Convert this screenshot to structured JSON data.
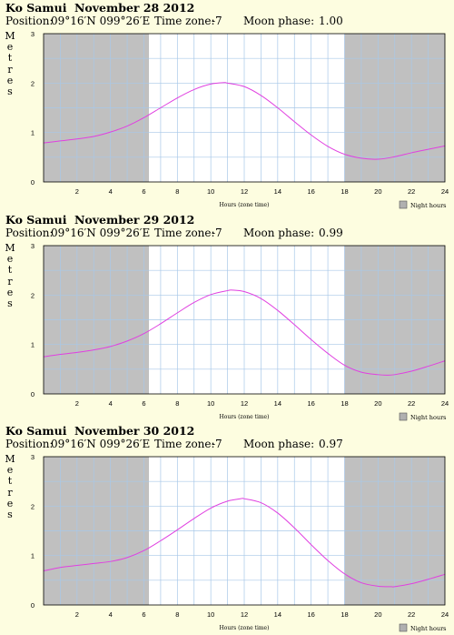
{
  "charts": [
    {
      "place": "Ko Samui",
      "date": "November 28 2012",
      "position_label": "Position:",
      "position": "09°16′N 099°26′E",
      "timezone_label": "Time zone:",
      "timezone": "-7",
      "moon_label": "Moon phase:",
      "moon": "1.00"
    },
    {
      "place": "Ko Samui",
      "date": "November 29 2012",
      "position_label": "Position:",
      "position": "09°16′N 099°26′E",
      "timezone_label": "Time zone:",
      "timezone": "-7",
      "moon_label": "Moon phase:",
      "moon": "0.99"
    },
    {
      "place": "Ko Samui",
      "date": "November 30 2012",
      "position_label": "Position:",
      "position": "09°16′N 099°26′E",
      "timezone_label": "Time zone:",
      "timezone": "-7",
      "moon_label": "Moon phase:",
      "moon": "0.97"
    }
  ],
  "ylabel_letters": [
    "M",
    "e",
    "t",
    "r",
    "e",
    "s"
  ],
  "xlabel": "Hours (zone time)",
  "legend": "Night hours",
  "colors": {
    "curve": "#e040e0",
    "night": "#c0c0c0",
    "grid": "#a8c8e8",
    "background": "#fdfde0",
    "legend_box": "#b0b0b0"
  },
  "chart_data": [
    {
      "type": "line",
      "title": "Ko Samui November 28 2012",
      "xlabel": "Hours (zone time)",
      "ylabel": "Metres",
      "xlim": [
        0,
        24
      ],
      "ylim": [
        0,
        3
      ],
      "xticks": [
        2,
        4,
        6,
        8,
        10,
        12,
        14,
        16,
        18,
        20,
        22,
        24
      ],
      "yticks": [
        0,
        1,
        2,
        3
      ],
      "night_hours": [
        [
          0,
          6.3
        ],
        [
          18.0,
          24
        ]
      ],
      "x": [
        0,
        1,
        2,
        3,
        4,
        5,
        6,
        7,
        8,
        9,
        10,
        10.8,
        11,
        12,
        13,
        14,
        15,
        16,
        17,
        18,
        19,
        20,
        21,
        22,
        23,
        24
      ],
      "y": [
        0.79,
        0.83,
        0.87,
        0.92,
        1.01,
        1.13,
        1.3,
        1.5,
        1.7,
        1.87,
        1.98,
        2.01,
        2.0,
        1.93,
        1.75,
        1.5,
        1.22,
        0.95,
        0.72,
        0.56,
        0.48,
        0.46,
        0.51,
        0.59,
        0.66,
        0.73
      ]
    },
    {
      "type": "line",
      "title": "Ko Samui November 29 2012",
      "xlabel": "Hours (zone time)",
      "ylabel": "Metres",
      "xlim": [
        0,
        24
      ],
      "ylim": [
        0,
        3
      ],
      "xticks": [
        2,
        4,
        6,
        8,
        10,
        12,
        14,
        16,
        18,
        20,
        22,
        24
      ],
      "yticks": [
        0,
        1,
        2,
        3
      ],
      "night_hours": [
        [
          0,
          6.3
        ],
        [
          18.0,
          24
        ]
      ],
      "x": [
        0,
        1,
        2,
        3,
        4,
        5,
        6,
        7,
        8,
        9,
        10,
        11,
        11.3,
        12,
        13,
        14,
        15,
        16,
        17,
        18,
        19,
        20,
        20.5,
        21,
        22,
        23,
        24
      ],
      "y": [
        0.75,
        0.8,
        0.84,
        0.89,
        0.96,
        1.07,
        1.22,
        1.42,
        1.64,
        1.85,
        2.01,
        2.09,
        2.1,
        2.07,
        1.93,
        1.69,
        1.4,
        1.1,
        0.82,
        0.58,
        0.44,
        0.39,
        0.38,
        0.39,
        0.46,
        0.56,
        0.67
      ]
    },
    {
      "type": "line",
      "title": "Ko Samui November 30 2012",
      "xlabel": "Hours (zone time)",
      "ylabel": "Metres",
      "xlim": [
        0,
        24
      ],
      "ylim": [
        0,
        3
      ],
      "xticks": [
        2,
        4,
        6,
        8,
        10,
        12,
        14,
        16,
        18,
        20,
        22,
        24
      ],
      "yticks": [
        0,
        1,
        2,
        3
      ],
      "night_hours": [
        [
          0,
          6.3
        ],
        [
          18.0,
          24
        ]
      ],
      "x": [
        0,
        1,
        2,
        3,
        4,
        5,
        6,
        7,
        8,
        9,
        10,
        11,
        11.8,
        12,
        13,
        14,
        15,
        16,
        17,
        18,
        19,
        20,
        20.8,
        21,
        22,
        23,
        24
      ],
      "y": [
        0.69,
        0.76,
        0.8,
        0.84,
        0.88,
        0.96,
        1.1,
        1.3,
        1.52,
        1.75,
        1.96,
        2.1,
        2.15,
        2.15,
        2.07,
        1.86,
        1.56,
        1.22,
        0.9,
        0.63,
        0.45,
        0.38,
        0.37,
        0.37,
        0.43,
        0.52,
        0.62
      ]
    }
  ]
}
